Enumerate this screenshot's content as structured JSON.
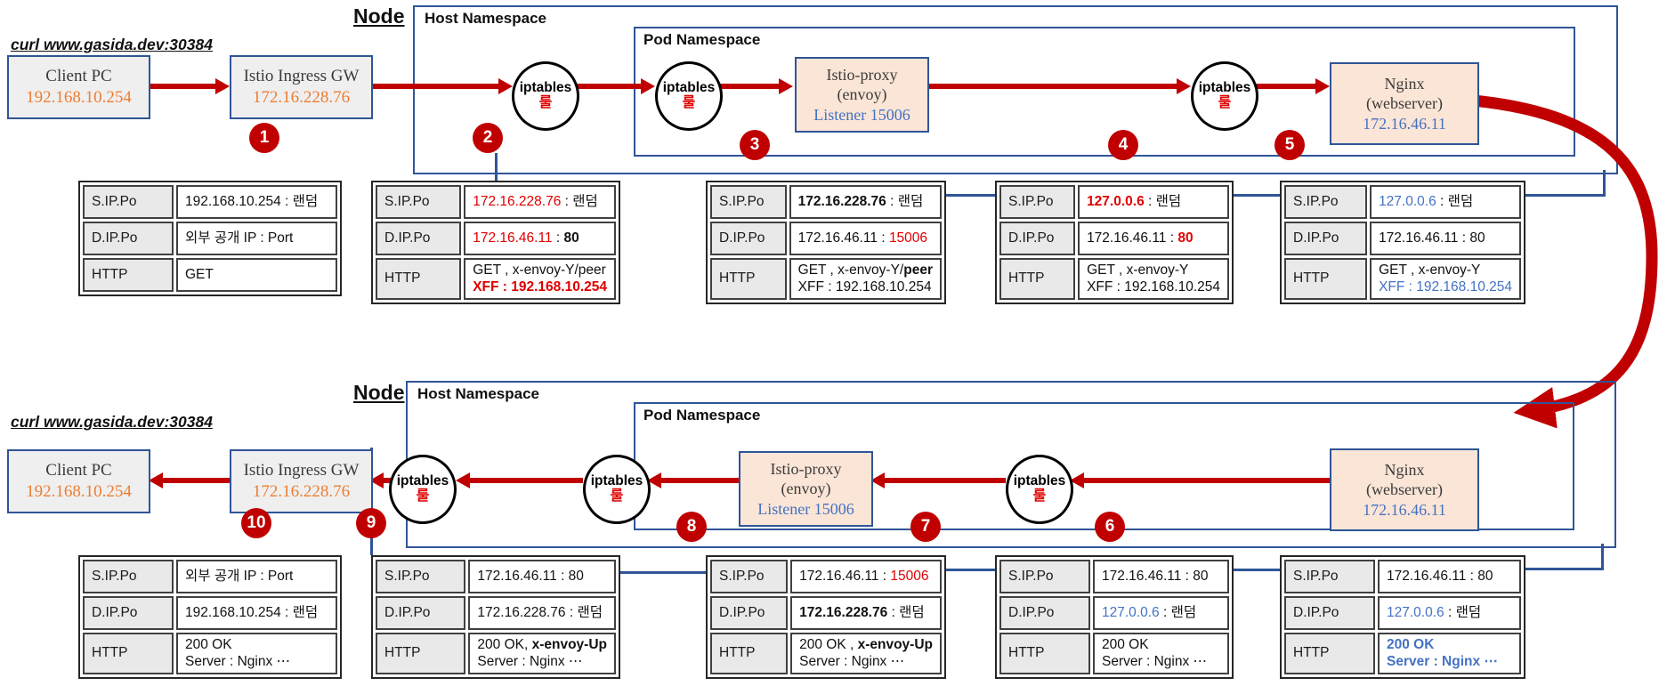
{
  "labels": {
    "node": "Node",
    "host_namespace": "Host Namespace",
    "pod_namespace": "Pod Namespace",
    "curl_command": "curl www.gasida.dev:30384",
    "iptables": "iptables",
    "rule": "룰"
  },
  "colors": {
    "arrow_red": "#C00000",
    "text_red": "#E00000",
    "text_blue": "#4472C4",
    "text_orange": "#ED7D31",
    "border_blue": "#2F5597"
  },
  "components": {
    "client": {
      "title": "Client PC",
      "ip": "192.168.10.254"
    },
    "ingress": {
      "title": "Istio Ingress GW",
      "ip": "172.16.228.76"
    },
    "istio_proxy": {
      "title": "Istio-proxy",
      "subtitle": "(envoy)",
      "listener": "Listener 15006"
    },
    "nginx": {
      "title": "Nginx",
      "subtitle": "(webserver)",
      "ip": "172.16.46.11"
    }
  },
  "steps": {
    "top": [
      "1",
      "2",
      "3",
      "4",
      "5"
    ],
    "bottom": [
      "10",
      "9",
      "8",
      "7",
      "6"
    ]
  },
  "top_tables": [
    {
      "rows": [
        {
          "label": "S.IP.Po",
          "lines": [
            [
              {
                "t": "192.168.10.254 : 랜덤"
              }
            ]
          ]
        },
        {
          "label": "D.IP.Po",
          "lines": [
            [
              {
                "t": "외부 공개 IP : Port"
              }
            ]
          ]
        },
        {
          "label": "HTTP",
          "lines": [
            [
              {
                "t": "GET"
              }
            ]
          ]
        }
      ]
    },
    {
      "rows": [
        {
          "label": "S.IP.Po",
          "lines": [
            [
              {
                "t": "172.16.228.76",
                "c": "r"
              },
              {
                "t": " : 랜덤"
              }
            ]
          ]
        },
        {
          "label": "D.IP.Po",
          "lines": [
            [
              {
                "t": "172.16.46.11",
                "c": "r"
              },
              {
                "t": " : "
              },
              {
                "t": "80",
                "b": 1
              }
            ]
          ]
        },
        {
          "label": "HTTP",
          "lines": [
            [
              {
                "t": "GET , x-envoy-Y/peer"
              }
            ],
            [
              {
                "t": "XFF : 192.168.10.254",
                "c": "r",
                "b": 1
              }
            ]
          ]
        }
      ]
    },
    {
      "rows": [
        {
          "label": "S.IP.Po",
          "lines": [
            [
              {
                "t": "172.16.228.76",
                "b": 1
              },
              {
                "t": " : 랜덤"
              }
            ]
          ]
        },
        {
          "label": "D.IP.Po",
          "lines": [
            [
              {
                "t": "172.16.46.11 : "
              },
              {
                "t": "15006",
                "c": "r"
              }
            ]
          ]
        },
        {
          "label": "HTTP",
          "lines": [
            [
              {
                "t": "GET , x-envoy-Y/"
              },
              {
                "t": "peer",
                "b": 1
              }
            ],
            [
              {
                "t": "XFF : 192.168.10.254"
              }
            ]
          ]
        }
      ]
    },
    {
      "rows": [
        {
          "label": "S.IP.Po",
          "lines": [
            [
              {
                "t": "127.0.0.6",
                "c": "r",
                "b": 1
              },
              {
                "t": " : 랜덤"
              }
            ]
          ]
        },
        {
          "label": "D.IP.Po",
          "lines": [
            [
              {
                "t": "172.16.46.11 : "
              },
              {
                "t": "80",
                "c": "r",
                "b": 1
              }
            ]
          ]
        },
        {
          "label": "HTTP",
          "lines": [
            [
              {
                "t": "GET , x-envoy-Y"
              }
            ],
            [
              {
                "t": "XFF : 192.168.10.254"
              }
            ]
          ]
        }
      ]
    },
    {
      "rows": [
        {
          "label": "S.IP.Po",
          "lines": [
            [
              {
                "t": "127.0.0.6",
                "c": "bl"
              },
              {
                "t": " : 랜덤"
              }
            ]
          ]
        },
        {
          "label": "D.IP.Po",
          "lines": [
            [
              {
                "t": "172.16.46.11 : 80"
              }
            ]
          ]
        },
        {
          "label": "HTTP",
          "lines": [
            [
              {
                "t": "GET , x-envoy-Y"
              }
            ],
            [
              {
                "t": "XFF : 192.168.10.254",
                "c": "bl"
              }
            ]
          ]
        }
      ]
    }
  ],
  "bottom_tables": [
    {
      "rows": [
        {
          "label": "S.IP.Po",
          "lines": [
            [
              {
                "t": "외부 공개 IP : Port"
              }
            ]
          ]
        },
        {
          "label": "D.IP.Po",
          "lines": [
            [
              {
                "t": "192.168.10.254 : 랜덤"
              }
            ]
          ]
        },
        {
          "label": "HTTP",
          "lines": [
            [
              {
                "t": "200 OK"
              }
            ],
            [
              {
                "t": "Server : Nginx ⋯"
              }
            ]
          ]
        }
      ]
    },
    {
      "rows": [
        {
          "label": "S.IP.Po",
          "lines": [
            [
              {
                "t": "172.16.46.11 : 80"
              }
            ]
          ]
        },
        {
          "label": "D.IP.Po",
          "lines": [
            [
              {
                "t": "172.16.228.76 : 랜덤"
              }
            ]
          ]
        },
        {
          "label": "HTTP",
          "lines": [
            [
              {
                "t": "200 OK, "
              },
              {
                "t": "x-envoy-Up",
                "b": 1
              }
            ],
            [
              {
                "t": "Server : Nginx ⋯"
              }
            ]
          ]
        }
      ]
    },
    {
      "rows": [
        {
          "label": "S.IP.Po",
          "lines": [
            [
              {
                "t": "172.16.46.11 : "
              },
              {
                "t": "15006",
                "c": "r"
              }
            ]
          ]
        },
        {
          "label": "D.IP.Po",
          "lines": [
            [
              {
                "t": "172.16.228.76",
                "b": 1
              },
              {
                "t": " : 랜덤"
              }
            ]
          ]
        },
        {
          "label": "HTTP",
          "lines": [
            [
              {
                "t": "200 OK , "
              },
              {
                "t": "x-envoy-Up",
                "b": 1
              }
            ],
            [
              {
                "t": "Server : Nginx ⋯"
              }
            ]
          ]
        }
      ]
    },
    {
      "rows": [
        {
          "label": "S.IP.Po",
          "lines": [
            [
              {
                "t": "172.16.46.11 : 80"
              }
            ]
          ]
        },
        {
          "label": "D.IP.Po",
          "lines": [
            [
              {
                "t": "127.0.0.6",
                "c": "bl"
              },
              {
                "t": " : 랜덤"
              }
            ]
          ]
        },
        {
          "label": "HTTP",
          "lines": [
            [
              {
                "t": "200 OK"
              }
            ],
            [
              {
                "t": "Server : Nginx ⋯"
              }
            ]
          ]
        }
      ]
    },
    {
      "rows": [
        {
          "label": "S.IP.Po",
          "lines": [
            [
              {
                "t": "172.16.46.11 : 80"
              }
            ]
          ]
        },
        {
          "label": "D.IP.Po",
          "lines": [
            [
              {
                "t": "127.0.0.6",
                "c": "bl"
              },
              {
                "t": " : 랜덤"
              }
            ]
          ]
        },
        {
          "label": "HTTP",
          "lines": [
            [
              {
                "t": "200 OK",
                "c": "bl",
                "b": 1
              }
            ],
            [
              {
                "t": "Server : Nginx ⋯",
                "c": "bl",
                "b": 1
              }
            ]
          ]
        }
      ]
    }
  ]
}
